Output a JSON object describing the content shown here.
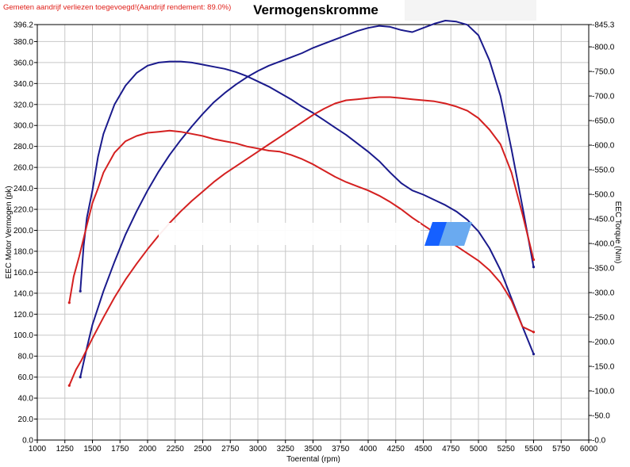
{
  "chart_data": {
    "type": "line",
    "title": "Vermogenskromme",
    "note": "Gemeten aandrijf verliezen toegevoegd!(Aandrijf rendement: 89.0%)",
    "xlabel": "Toerental (rpm)",
    "ylabel_left": "EEC Motor Vermogen (pk)",
    "ylabel_right": "EEC Torque (Nm)",
    "xlim": [
      1000,
      6000
    ],
    "ylim_left": [
      0,
      396.2
    ],
    "ylim_right": [
      0,
      845.3
    ],
    "grid": true,
    "x_ticks": [
      "1000",
      "1250",
      "1500",
      "1750",
      "2000",
      "2250",
      "2500",
      "2750",
      "3000",
      "3250",
      "3500",
      "3750",
      "4000",
      "4250",
      "4500",
      "4750",
      "5000",
      "5250",
      "5500",
      "5750",
      "6000"
    ],
    "y_left_ticks": [
      "0.0",
      "20.0",
      "40.0",
      "60.0",
      "80.0",
      "100.0",
      "120.0",
      "140.0",
      "160.0",
      "180.0",
      "200.0",
      "220.0",
      "240.0",
      "260.0",
      "280.0",
      "300.0",
      "320.0",
      "340.0",
      "360.0",
      "380.0",
      "396.2"
    ],
    "y_right_ticks": [
      "0.0",
      "50.0",
      "100.0",
      "150.0",
      "200.0",
      "250.0",
      "300.0",
      "350.0",
      "400.0",
      "450.0",
      "500.0",
      "550.0",
      "600.0",
      "650.0",
      "700.0",
      "750.0",
      "800.0",
      "845.3"
    ],
    "colors": {
      "blue": "#1a1a8c",
      "red": "#d42020",
      "grid": "#c8c8c8"
    },
    "series": [
      {
        "color": "blue",
        "axis": "left",
        "kind": "power",
        "x": [
          1390,
          1450,
          1500,
          1600,
          1700,
          1800,
          1900,
          2000,
          2100,
          2200,
          2300,
          2400,
          2500,
          2600,
          2700,
          2800,
          2900,
          3000,
          3100,
          3200,
          3300,
          3400,
          3500,
          3600,
          3700,
          3800,
          3900,
          4000,
          4100,
          4200,
          4300,
          4400,
          4500,
          4600,
          4700,
          4800,
          4900,
          5000,
          5100,
          5200,
          5300,
          5400,
          5500
        ],
        "y": [
          60,
          88,
          110,
          142,
          170,
          196,
          218,
          238,
          256,
          272,
          286,
          299,
          311,
          322,
          331,
          339,
          346,
          352,
          357,
          361,
          365,
          369,
          374,
          378,
          382,
          386,
          390,
          393,
          395,
          394,
          391,
          389,
          393,
          397,
          400,
          399,
          396,
          386,
          362,
          328,
          277,
          222,
          165
        ]
      },
      {
        "color": "blue",
        "axis": "left",
        "kind": "torque",
        "x": [
          1390,
          1420,
          1450,
          1500,
          1550,
          1600,
          1700,
          1800,
          1900,
          2000,
          2100,
          2200,
          2300,
          2400,
          2500,
          2600,
          2700,
          2800,
          2900,
          3000,
          3100,
          3200,
          3300,
          3400,
          3500,
          3600,
          3700,
          3800,
          3900,
          4000,
          4100,
          4200,
          4300,
          4400,
          4500,
          4600,
          4700,
          4800,
          4900,
          5000,
          5100,
          5200,
          5300,
          5400,
          5500
        ],
        "y": [
          142,
          185,
          212,
          238,
          270,
          292,
          320,
          338,
          350,
          357,
          360,
          361,
          361,
          360,
          358,
          356,
          354,
          351,
          347,
          342,
          337,
          331,
          325,
          318,
          312,
          305,
          298,
          291,
          283,
          275,
          266,
          255,
          245,
          238,
          234,
          229,
          224,
          218,
          210,
          199,
          183,
          162,
          135,
          108,
          82
        ]
      },
      {
        "color": "red",
        "axis": "left",
        "kind": "power",
        "x": [
          1290,
          1350,
          1400,
          1500,
          1600,
          1700,
          1800,
          1900,
          2000,
          2100,
          2200,
          2300,
          2400,
          2500,
          2600,
          2700,
          2800,
          2900,
          3000,
          3100,
          3200,
          3300,
          3400,
          3500,
          3600,
          3700,
          3800,
          3900,
          4000,
          4100,
          4200,
          4300,
          4400,
          4500,
          4600,
          4700,
          4800,
          4900,
          5000,
          5100,
          5200,
          5300,
          5400,
          5500
        ],
        "y": [
          52,
          67,
          76,
          97,
          117,
          136,
          153,
          168,
          182,
          195,
          207,
          218,
          228,
          237,
          246,
          254,
          261,
          268,
          275,
          282,
          289,
          296,
          303,
          310,
          316,
          321,
          324,
          325,
          326,
          327,
          327,
          326,
          325,
          324,
          323,
          321,
          318,
          314,
          307,
          296,
          282,
          255,
          215,
          172
        ]
      },
      {
        "color": "red",
        "axis": "left",
        "kind": "torque",
        "x": [
          1290,
          1330,
          1380,
          1450,
          1500,
          1550,
          1600,
          1700,
          1800,
          1900,
          2000,
          2100,
          2200,
          2300,
          2400,
          2500,
          2600,
          2700,
          2800,
          2900,
          3000,
          3100,
          3200,
          3300,
          3400,
          3500,
          3600,
          3700,
          3800,
          3900,
          4000,
          4100,
          4200,
          4300,
          4400,
          4500,
          4600,
          4700,
          4800,
          4900,
          5000,
          5100,
          5200,
          5300,
          5400,
          5500
        ],
        "y": [
          131,
          156,
          175,
          205,
          226,
          240,
          255,
          274,
          285,
          290,
          293,
          294,
          295,
          294,
          292,
          290,
          287,
          285,
          283,
          280,
          278,
          276,
          275,
          272,
          268,
          263,
          257,
          251,
          246,
          242,
          238,
          233,
          227,
          220,
          212,
          205,
          198,
          191,
          185,
          178,
          171,
          162,
          150,
          133,
          108,
          103
        ]
      }
    ],
    "watermark": {
      "color_primary": "#1560ff",
      "color_secondary": "#6aaaf0"
    }
  }
}
